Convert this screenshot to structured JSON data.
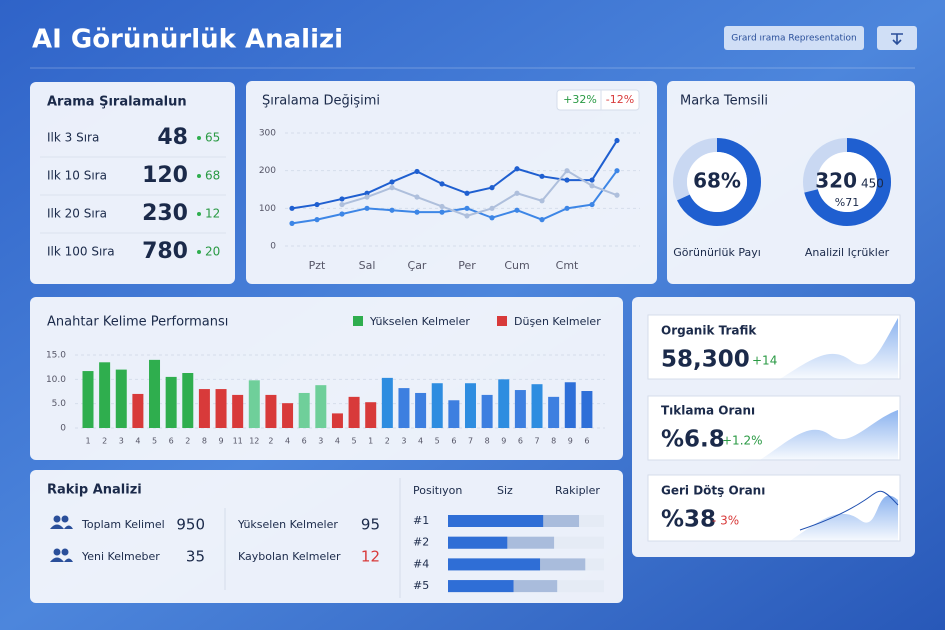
{
  "header": {
    "title": "AI Görünürlük Analizi",
    "button": "Grard ırama Representation"
  },
  "rankings": {
    "title": "Arama Şıralamalun",
    "rows": [
      {
        "label": "Ilk 3 Sıra",
        "value": 48,
        "change": 65
      },
      {
        "label": "Ilk 10 Sıra",
        "value": 120,
        "change": 68
      },
      {
        "label": "Ilk 20 Sıra",
        "value": 230,
        "change": 12
      },
      {
        "label": "Ilk 100 Sıra",
        "value": 780,
        "change": 20
      }
    ]
  },
  "rank_change": {
    "type": "line",
    "title": "Şıralama Değişimi",
    "badges": [
      "+32%",
      "-12%"
    ],
    "categories": [
      null,
      "Pzt",
      null,
      "Sal",
      null,
      "Çar",
      null,
      "Per",
      null,
      "Cum",
      null,
      "Cmt",
      null,
      null
    ],
    "ylim": [
      0,
      300
    ],
    "yticks": [
      0,
      100,
      200,
      300
    ],
    "grid": true,
    "series": [
      {
        "color": "#1f5fd0",
        "values": [
          100,
          110,
          125,
          140,
          170,
          198,
          165,
          140,
          155,
          205,
          185,
          175,
          175,
          280
        ]
      },
      {
        "color": "#3d86e6",
        "values": [
          60,
          70,
          85,
          100,
          95,
          90,
          90,
          100,
          75,
          95,
          70,
          100,
          110,
          200
        ]
      },
      {
        "color": "#aebfdc",
        "values": [
          null,
          null,
          110,
          130,
          155,
          130,
          105,
          80,
          100,
          140,
          120,
          200,
          160,
          135
        ]
      }
    ]
  },
  "brand": {
    "title": "Marka Temsili",
    "donuts": [
      {
        "value": 68,
        "value_label": "68%",
        "label": "Görünürlük Payı"
      },
      {
        "value": 71,
        "value_label": "%71",
        "count": 320,
        "total": 450,
        "label": "Analizil Içrükler"
      }
    ]
  },
  "keywords": {
    "type": "bar",
    "title": "Anahtar Kelime Performansı",
    "legend": [
      {
        "name": "Yükselen Kelmeler",
        "color": "#2fae4e"
      },
      {
        "name": "Düşen Kelmeler",
        "color": "#d83a3a"
      }
    ],
    "categories": [
      "1",
      "2",
      "3",
      "4",
      "5",
      "6",
      "2",
      "8",
      "9",
      "11",
      "12",
      "2",
      "4",
      "6",
      "3",
      "4",
      "5",
      "1",
      "2",
      "3",
      "4",
      "5",
      "6",
      "7",
      "8",
      "9",
      "6",
      "7",
      "8",
      "9",
      "6"
    ],
    "values": [
      11.7,
      13.5,
      12,
      7,
      14,
      10.5,
      11.3,
      8,
      8,
      6.8,
      9.8,
      6.8,
      5.1,
      7.2,
      8.8,
      3,
      6.4,
      5.3,
      10.3,
      8.2,
      7.2,
      9.2,
      5.7,
      9.2,
      6.8,
      10,
      7.8,
      9,
      6.4,
      9.4,
      7.6
    ],
    "colors": [
      "#2fae4e",
      "#2fae4e",
      "#2fae4e",
      "#d83a3a",
      "#2fae4e",
      "#2fae4e",
      "#2fae4e",
      "#d83a3a",
      "#d83a3a",
      "#d83a3a",
      "#6fcf9a",
      "#d83a3a",
      "#d83a3a",
      "#6fcf9a",
      "#6fcf9a",
      "#d83a3a",
      "#d83a3a",
      "#d83a3a",
      "#2e8de0",
      "#3d7fe0",
      "#3d7fe0",
      "#2e8de0",
      "#3d7fe0",
      "#2e8de0",
      "#3d7fe0",
      "#2e8de0",
      "#3d7fe0",
      "#2e8de0",
      "#3d7fe0",
      "#2e6fd8",
      "#2e6fd8"
    ],
    "ylim": [
      0,
      15
    ],
    "yticks": [
      {
        "value": 0,
        "label": "0"
      },
      {
        "value": 5,
        "label": "5.0"
      },
      {
        "value": 10,
        "label": "10.0"
      },
      {
        "value": 15,
        "label": "15.0"
      }
    ],
    "grid": true
  },
  "kpis": [
    {
      "label": "Organik Trafik",
      "value": "58,300",
      "change": "+14",
      "trend": "up"
    },
    {
      "label": "Tıklama Oranı",
      "value": "%6.8",
      "change": "+1.2%",
      "trend": "up"
    },
    {
      "label": "Geri Dötş Oranı",
      "value": "%38",
      "change": "- 3%",
      "trend": "down"
    }
  ],
  "competitors": {
    "title": "Rakip Analizi",
    "stats": [
      {
        "label": "Toplam Kelimel",
        "value": 950
      },
      {
        "label": "Yeni Kelmeber",
        "value": 35
      },
      {
        "label": "Yükselen Kelmeler",
        "value": 95
      },
      {
        "label": "Kaybolan Kelmeler",
        "value": 12
      }
    ],
    "table": {
      "headers": [
        "Positıyon",
        "Siz",
        "Rakipler"
      ],
      "xlim": [
        0,
        100
      ],
      "rows": [
        {
          "position": "#1",
          "siz": 61,
          "rakip": 84
        },
        {
          "position": "#2",
          "siz": 38,
          "rakip": 68
        },
        {
          "position": "#4",
          "siz": 59,
          "rakip": 88
        },
        {
          "position": "#5",
          "siz": 42,
          "rakip": 70
        }
      ]
    }
  }
}
